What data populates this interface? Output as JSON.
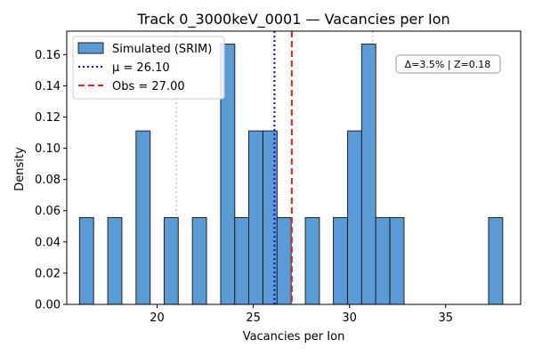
{
  "chart_data": {
    "type": "bar",
    "title": "Track 0_3000keV_0001 — Vacancies per Ion",
    "xlabel": "Vacancies per Ion",
    "ylabel": "Density",
    "xlim": [
      15.3,
      38.9
    ],
    "ylim": [
      0,
      0.175
    ],
    "xticks": [
      20,
      25,
      30,
      35
    ],
    "yticks": [
      0.0,
      0.02,
      0.04,
      0.06,
      0.08,
      0.1,
      0.12,
      0.14,
      0.16
    ],
    "bin_width": 0.7333,
    "series": [
      {
        "name": "Simulated (SRIM)",
        "color": "#5b9bd5",
        "bins": [
          {
            "x": 16.33,
            "density": 0.0556
          },
          {
            "x": 17.8,
            "density": 0.0556
          },
          {
            "x": 19.27,
            "density": 0.1111
          },
          {
            "x": 20.73,
            "density": 0.0556
          },
          {
            "x": 22.2,
            "density": 0.0556
          },
          {
            "x": 23.67,
            "density": 0.1667
          },
          {
            "x": 24.4,
            "density": 0.0556
          },
          {
            "x": 25.13,
            "density": 0.1111
          },
          {
            "x": 25.87,
            "density": 0.1111
          },
          {
            "x": 26.6,
            "density": 0.0556
          },
          {
            "x": 28.07,
            "density": 0.0556
          },
          {
            "x": 29.53,
            "density": 0.0556
          },
          {
            "x": 30.27,
            "density": 0.1111
          },
          {
            "x": 31.0,
            "density": 0.1667
          },
          {
            "x": 31.73,
            "density": 0.0556
          },
          {
            "x": 32.47,
            "density": 0.0556
          },
          {
            "x": 37.6,
            "density": 0.0556
          }
        ]
      }
    ],
    "lines": [
      {
        "label": "μ = 26.10",
        "x": 26.1,
        "color": "#0000ff",
        "style": "dotted"
      },
      {
        "label": "Obs = 27.00",
        "x": 27.0,
        "color": "#e02020",
        "style": "dashed"
      }
    ],
    "ref_lines": [
      21.0,
      31.2
    ],
    "annotation": "Δ=3.5% | Z=0.18",
    "legend_position": "upper-left",
    "grid": false
  }
}
